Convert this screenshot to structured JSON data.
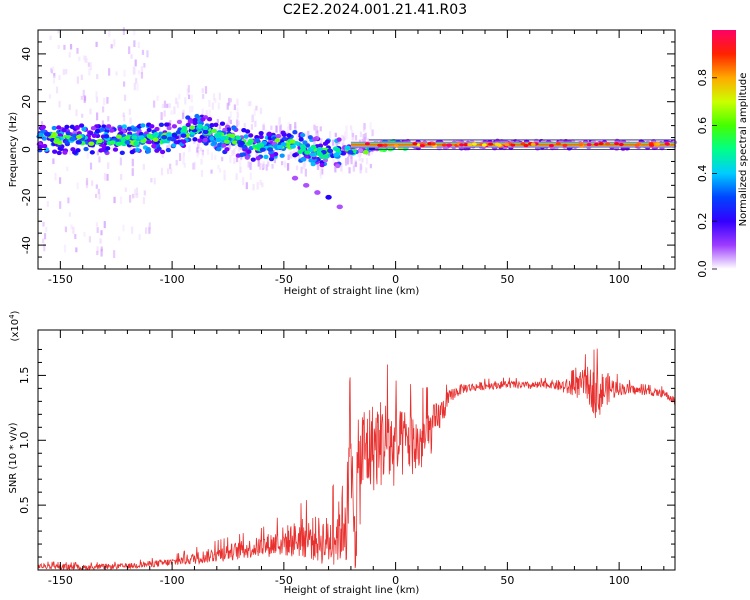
{
  "title": "C2E2.2024.001.21.41.R03",
  "chart_data": [
    {
      "type": "heatmap",
      "xlabel": "Height of straight line (km)",
      "ylabel": "Frequency (Hz)",
      "xlim": [
        -160,
        125
      ],
      "ylim": [
        -50,
        50
      ],
      "x_ticks": [
        -150,
        -100,
        -50,
        0,
        50,
        100
      ],
      "y_ticks": [
        -40,
        -20,
        0,
        20,
        40
      ],
      "colorbar": {
        "label": "Normalized spectral amplitude",
        "range": [
          0.0,
          1.0
        ],
        "ticks": [
          "0.0",
          "0.2",
          "0.4",
          "0.6",
          "0.8"
        ],
        "tick_values": [
          0.0,
          0.2,
          0.4,
          0.6,
          0.8
        ],
        "colormap": [
          "#ffffff",
          "#e9c8ff",
          "#8800ff",
          "#2200ff",
          "#00ccff",
          "#00ff66",
          "#88ff00",
          "#ffff00",
          "#ff8800",
          "#ff0000",
          "#ff0066"
        ]
      },
      "ridge": {
        "x": [
          -160,
          -140,
          -120,
          -100,
          -90,
          -80,
          -70,
          -60,
          -50,
          -40,
          -30,
          -20,
          -10,
          0,
          20,
          50,
          80,
          100,
          125
        ],
        "y": [
          5,
          4,
          4,
          5,
          9,
          6,
          3,
          1,
          3,
          0,
          -2,
          0,
          1,
          2,
          2,
          2,
          2,
          2,
          2
        ]
      },
      "branch": {
        "x": [
          -45,
          -40,
          -35,
          -30,
          -25
        ],
        "y": [
          -12,
          -15,
          -18,
          -20,
          -24
        ]
      }
    },
    {
      "type": "line",
      "xlabel": "Height of straight line (km)",
      "ylabel": "SNR (10 * v/v)",
      "yscale_label": "(x10",
      "yscale_exp": "4",
      "yscale_close": ")",
      "xlim": [
        -160,
        125
      ],
      "ylim": [
        0,
        1.85
      ],
      "x_ticks": [
        -150,
        -100,
        -50,
        0,
        50,
        100
      ],
      "y_ticks": [
        0.5,
        1.0,
        1.5
      ],
      "y_tick_labels": [
        "0.5",
        "1.0",
        "1.5"
      ],
      "series": [
        {
          "color": "#e8312f",
          "x": [
            -160,
            -140,
            -120,
            -100,
            -80,
            -60,
            -50,
            -40,
            -30,
            -25,
            -20,
            -18,
            -15,
            -10,
            -5,
            0,
            5,
            10,
            15,
            20,
            25,
            30,
            40,
            50,
            60,
            70,
            80,
            85,
            90,
            95,
            100,
            110,
            120,
            125
          ],
          "values": [
            0.03,
            0.02,
            0.03,
            0.06,
            0.12,
            0.18,
            0.22,
            0.25,
            0.22,
            0.3,
            0.55,
            0.5,
            0.9,
            0.95,
            1.0,
            0.92,
            1.0,
            0.95,
            1.05,
            1.2,
            1.35,
            1.4,
            1.42,
            1.43,
            1.42,
            1.43,
            1.4,
            1.45,
            1.35,
            1.4,
            1.4,
            1.38,
            1.36,
            1.3
          ],
          "spread": [
            0.02,
            0.02,
            0.02,
            0.03,
            0.06,
            0.08,
            0.12,
            0.16,
            0.2,
            0.25,
            0.55,
            0.55,
            0.4,
            0.35,
            0.35,
            0.3,
            0.25,
            0.25,
            0.2,
            0.12,
            0.05,
            0.04,
            0.03,
            0.03,
            0.03,
            0.03,
            0.08,
            0.12,
            0.2,
            0.12,
            0.05,
            0.03,
            0.03,
            0.03
          ]
        }
      ]
    }
  ]
}
